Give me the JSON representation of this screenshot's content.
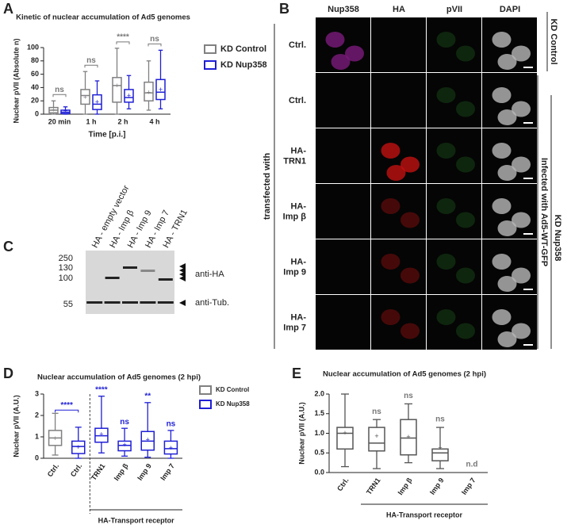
{
  "panel_letters": [
    "A",
    "B",
    "C",
    "D",
    "E"
  ],
  "chart_data": [
    {
      "type": "box",
      "title": "Kinetic of nuclear accumulation of Ad5 genomes",
      "xlabel": "Time [p.i.]",
      "ylabel": "Nuclear pVII (Absolute n)",
      "categories": [
        "20 min",
        "1 h",
        "2 h",
        "4 h"
      ],
      "series": [
        {
          "name": "KD Control",
          "color": "#808080",
          "values": [
            {
              "min": 0,
              "q1": 2,
              "median": 6,
              "q3": 10,
              "max": 20,
              "mean": 6
            },
            {
              "min": 0,
              "q1": 15,
              "median": 28,
              "q3": 37,
              "max": 64,
              "mean": 25
            },
            {
              "min": 0,
              "q1": 18,
              "median": 43,
              "q3": 55,
              "max": 99,
              "mean": 42
            },
            {
              "min": 6,
              "q1": 20,
              "median": 32,
              "q3": 48,
              "max": 80,
              "mean": 32
            }
          ]
        },
        {
          "name": "KD Nup358",
          "color": "#1f1fd6",
          "values": [
            {
              "min": 0,
              "q1": 1,
              "median": 3,
              "q3": 6,
              "max": 11,
              "mean": 4
            },
            {
              "min": 0,
              "q1": 7,
              "median": 15,
              "q3": 29,
              "max": 50,
              "mean": 18
            },
            {
              "min": 8,
              "q1": 18,
              "median": 25,
              "q3": 37,
              "max": 58,
              "mean": 27
            },
            {
              "min": 8,
              "q1": 22,
              "median": 33,
              "q3": 52,
              "max": 96,
              "mean": 36
            }
          ]
        }
      ],
      "annotations": [
        "ns",
        "ns",
        "****",
        "ns"
      ],
      "ylim": [
        0,
        100
      ],
      "yticks": [
        0,
        20,
        40,
        60,
        80,
        100
      ],
      "legend": true
    },
    {
      "type": "box",
      "title": "Nuclear accumulation of Ad5 genomes (2 hpi)",
      "ylabel": "Nuclear pVII (A.U.)",
      "group_label": "HA-Transport receptor",
      "categories": [
        "Ctrl.",
        "Ctrl.",
        "TRN1",
        "Imp β",
        "Imp 9",
        "Imp 7"
      ],
      "series": [
        {
          "name": "KD Control",
          "color": "#808080",
          "values": [
            {
              "min": 0.15,
              "q1": 0.6,
              "median": 0.95,
              "q3": 1.3,
              "max": 2.1,
              "mean": 0.9
            },
            null,
            null,
            null,
            null,
            null
          ]
        },
        {
          "name": "KD Nup358",
          "color": "#1f1fd6",
          "values": [
            null,
            {
              "min": 0,
              "q1": 0.22,
              "median": 0.55,
              "q3": 0.8,
              "max": 1.45,
              "mean": 0.5
            },
            {
              "min": 0.25,
              "q1": 0.75,
              "median": 1.05,
              "q3": 1.4,
              "max": 2.9,
              "mean": 1.1
            },
            {
              "min": 0.1,
              "q1": 0.35,
              "median": 0.6,
              "q3": 0.8,
              "max": 1.4,
              "mean": 0.6
            },
            {
              "min": 0.05,
              "q1": 0.38,
              "median": 0.8,
              "q3": 1.25,
              "max": 2.6,
              "mean": 0.85
            },
            {
              "min": 0,
              "q1": 0.2,
              "median": 0.45,
              "q3": 0.8,
              "max": 1.3,
              "mean": 0.45
            }
          ]
        }
      ],
      "annotations": [
        "****",
        "****",
        "ns",
        "**",
        "ns"
      ],
      "annotation_color": "#1f1fd6",
      "ylim": [
        0,
        3
      ],
      "yticks": [
        0,
        1,
        2,
        3
      ],
      "legend": true
    },
    {
      "type": "box",
      "title": "Nuclear accumulation of Ad5 genomes (2 hpi)",
      "ylabel": "Nuclear pVII (A.U.)",
      "group_label": "HA-Transport receptor",
      "categories": [
        "Ctrl.",
        "TRN1",
        "Imp β",
        "Imp 9",
        "Imp 7"
      ],
      "series": [
        {
          "name": "KD Control",
          "color": "#555555",
          "values": [
            {
              "min": 0.15,
              "q1": 0.6,
              "median": 1.0,
              "q3": 1.15,
              "max": 2.0,
              "mean": 1.0
            },
            {
              "min": 0.1,
              "q1": 0.55,
              "median": 0.75,
              "q3": 1.15,
              "max": 1.35,
              "mean": 0.92
            },
            {
              "min": 0.25,
              "q1": 0.45,
              "median": 0.88,
              "q3": 1.35,
              "max": 1.75,
              "mean": 0.9
            },
            {
              "min": 0.1,
              "q1": 0.3,
              "median": 0.5,
              "q3": 0.6,
              "max": 1.15,
              "mean": 0.62
            },
            null
          ]
        }
      ],
      "annotations": [
        null,
        "ns",
        "ns",
        "ns",
        "n.d"
      ],
      "ylim": [
        0,
        2
      ],
      "yticks": [
        {
          "value": 0,
          "label": "0.0"
        },
        0.5,
        {
          "value": 1,
          "label": "1.0"
        },
        1.5,
        {
          "value": 2,
          "label": "2.0"
        }
      ],
      "legend": false
    }
  ],
  "microscopy": {
    "columns": [
      "Nup358",
      "HA",
      "pVII",
      "DAPI"
    ],
    "rows": [
      "Ctrl.",
      "Ctrl.",
      "HA-\nTRN1",
      "HA-\nImp β",
      "HA-\nImp 9",
      "HA-\nImp 7"
    ],
    "side_labels": [
      "KD Control",
      "Infected with Ad5-WT-GFP",
      "KD Nup358"
    ],
    "left_label": "transfected with"
  },
  "blot": {
    "lanes": [
      "HA - empty vector",
      "HA - Imp β",
      "HA - Imp 9",
      "HA - Imp 7",
      "HA - TRN1"
    ],
    "markers": [
      250,
      130,
      100,
      55
    ],
    "bands": [
      "anti-HA",
      "anti-Tub."
    ]
  }
}
